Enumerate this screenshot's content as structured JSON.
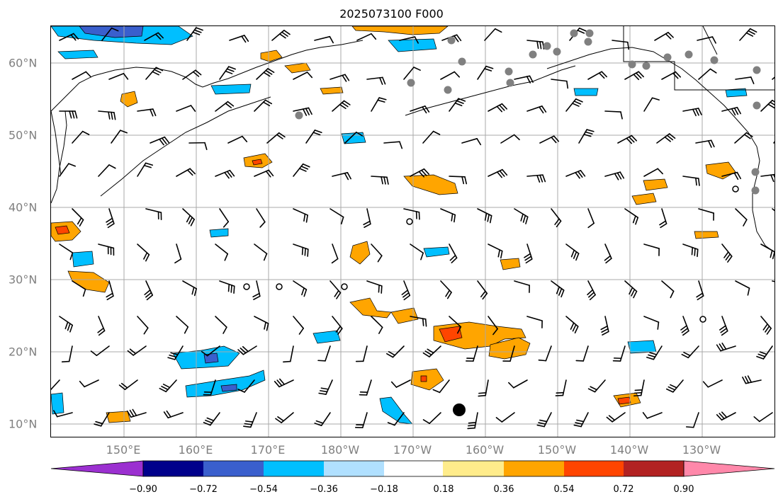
{
  "title": "2025073100 F000",
  "lat_labels": [
    "60°N",
    "50°N",
    "40°N",
    "30°N",
    "20°N",
    "10°N"
  ],
  "lon_labels": [
    "150°E",
    "160°E",
    "170°E",
    "180°W",
    "170°W",
    "160°W",
    "150°W",
    "140°W",
    "130°W"
  ],
  "colorbar": {
    "ticks": [
      "−0.90",
      "−0.72",
      "−0.54",
      "−0.36",
      "−0.18",
      "0.18",
      "0.36",
      "0.54",
      "0.72",
      "0.90"
    ],
    "colors": [
      "#9b30d0",
      "#00008b",
      "#3a5fcd",
      "#00bfff",
      "#b0e0ff",
      "#ffffff",
      "#ffec8b",
      "#ffa500",
      "#ff4500",
      "#b22222",
      "#ff88aa"
    ]
  },
  "colors": {
    "grid": "#a8a8a8",
    "coast": "#000000",
    "station": "#808080",
    "barb": "#000000"
  }
}
